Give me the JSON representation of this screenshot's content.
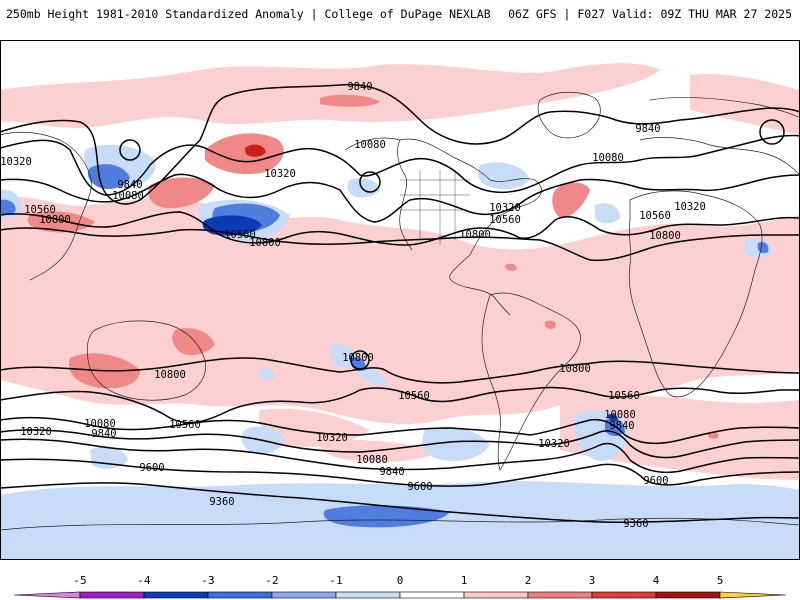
{
  "header": {
    "title_left": "250mb Height 1981-2010 Standardized Anomaly | College of DuPage NEXLAB",
    "title_right": "06Z GFS | F027 Valid: 09Z THU MAR 27 2025"
  },
  "legend": {
    "ticks": [
      "-5",
      "-4",
      "-3",
      "-2",
      "-1",
      "0",
      "1",
      "2",
      "3",
      "4",
      "5"
    ],
    "colors": [
      "#e080e0",
      "#a020c0",
      "#0a3cb4",
      "#3c6edc",
      "#8caaf0",
      "#c8dcf8",
      "#ffffff",
      "#fac8c8",
      "#f08080",
      "#dc3c3c",
      "#a01414",
      "#f0a020",
      "#ffcc40"
    ]
  },
  "contour_labels": [
    {
      "text": "9840"
    },
    {
      "text": "10320"
    },
    {
      "text": "9840"
    },
    {
      "text": "10080"
    },
    {
      "text": "10560"
    },
    {
      "text": "10800"
    },
    {
      "text": "10080"
    },
    {
      "text": "10320"
    },
    {
      "text": "10560"
    },
    {
      "text": "10800"
    },
    {
      "text": "10320"
    },
    {
      "text": "10560"
    },
    {
      "text": "10800"
    },
    {
      "text": "9840"
    },
    {
      "text": "10080"
    },
    {
      "text": "10320"
    },
    {
      "text": "10560"
    },
    {
      "text": "10800"
    },
    {
      "text": "10800"
    },
    {
      "text": "10800"
    },
    {
      "text": "10800"
    },
    {
      "text": "10560"
    },
    {
      "text": "10560"
    },
    {
      "text": "10560"
    },
    {
      "text": "10320"
    },
    {
      "text": "10080"
    },
    {
      "text": "9840"
    },
    {
      "text": "10320"
    },
    {
      "text": "10080"
    },
    {
      "text": "9840"
    },
    {
      "text": "9600"
    },
    {
      "text": "9600"
    },
    {
      "text": "10320"
    },
    {
      "text": "10080"
    },
    {
      "text": "9840"
    },
    {
      "text": "9600"
    },
    {
      "text": "9360"
    },
    {
      "text": "9360"
    }
  ]
}
